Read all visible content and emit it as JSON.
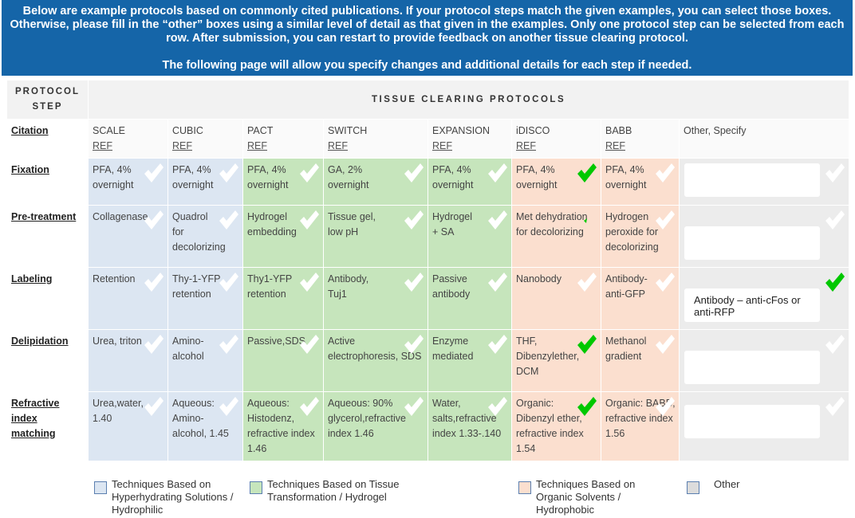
{
  "banner": {
    "line1": "Below are example protocols based on commonly cited publications. If your protocol steps match the given examples, you can select those boxes. Otherwise, please fill in the “other” boxes using a similar level of detail  as that given in the examples. Only one protocol step can be selected from each row. After submission,  you can restart to provide feedback on another tissue clearing protocol.",
    "line2": "The following page will allow you specify changes and additional details for each step if needed."
  },
  "headers": {
    "protocol_step": "PROTOCOL STEP",
    "tissue_clearing": "TISSUE CLEARING PROTOCOLS"
  },
  "colors": {
    "blue": "#dce6f2",
    "green": "#c6e5bc",
    "pink": "#fbdfcf",
    "gray": "#ececec",
    "selected_check": "#00c800",
    "unselected_check": "#ffffff"
  },
  "citation": {
    "label": "Citation",
    "protocols": [
      {
        "name": "SCALE",
        "ref": "REF"
      },
      {
        "name": "CUBIC",
        "ref": "REF"
      },
      {
        "name": "PACT",
        "ref": "REF"
      },
      {
        "name": "SWITCH",
        "ref": "REF"
      },
      {
        "name": "EXPANSION",
        "ref": "REF"
      },
      {
        "name": "iDISCO",
        "ref": "REF"
      },
      {
        "name": "BABB",
        "ref": "REF"
      }
    ],
    "other": "Other, Specify"
  },
  "rows": [
    {
      "label": "Fixation",
      "cells": [
        "PFA, 4% overnight",
        "PFA, 4% overnight",
        "PFA, 4% overnight",
        "GA, 2% overnight",
        "PFA, 4% overnight",
        "PFA, 4% overnight",
        "PFA, 4% overnight"
      ],
      "other_value": ""
    },
    {
      "label": "Pre-treatment",
      "cells": [
        "Collagenase",
        "Quadrol for decolorizing",
        "Hydrogel embedding",
        "Tissue gel, low pH",
        "Hydrogel + SA",
        "Met dehydration for decolorizing",
        "Hydrogen peroxide for decolorizing"
      ],
      "other_value": ""
    },
    {
      "label": "Labeling",
      "cells": [
        "Retention",
        "Thy-1-YFP retention",
        "Thy1-YFP retention",
        "Antibody, Tuj1",
        "Passive antibody",
        "Nanobody",
        "Antibody-anti-GFP"
      ],
      "other_value": "Antibody – anti-cFos or anti-RFP"
    },
    {
      "label": "Delipidation",
      "cells": [
        "Urea, triton",
        "Amino-alcohol",
        "Passive,SDS",
        "Active electrophoresis, SDS",
        "Enzyme mediated",
        "THF, Dibenzylether, DCM",
        "Methanol gradient"
      ],
      "other_value": ""
    },
    {
      "label": "Refractive index matching",
      "cells": [
        "Urea,water, 1.40",
        "Aqueous: Amino-alcohol, 1.45",
        "Aqueous: Histodenz, refractive index 1.46",
        "Aqueous: 90% glycerol,refractive index 1.46",
        "Water, salts,refractive index 1.33-.140",
        "Organic: Dibenzyl ether, refractive index 1.54",
        "Organic: BABB, refractive index 1.56"
      ],
      "other_value": ""
    }
  ],
  "legend": [
    {
      "label": "Techniques Based on Hyperhydrating Solutions / Hydrophilic",
      "color": "#dce6f2"
    },
    {
      "label": "Techniques Based on Tissue Transformation / Hydrogel",
      "color": "#c6e5bc"
    },
    {
      "label": "Techniques Based on Organic Solvents / Hydrophobic",
      "color": "#fbdfcf"
    },
    {
      "label": "Other",
      "color": "#dcdcdc"
    }
  ]
}
